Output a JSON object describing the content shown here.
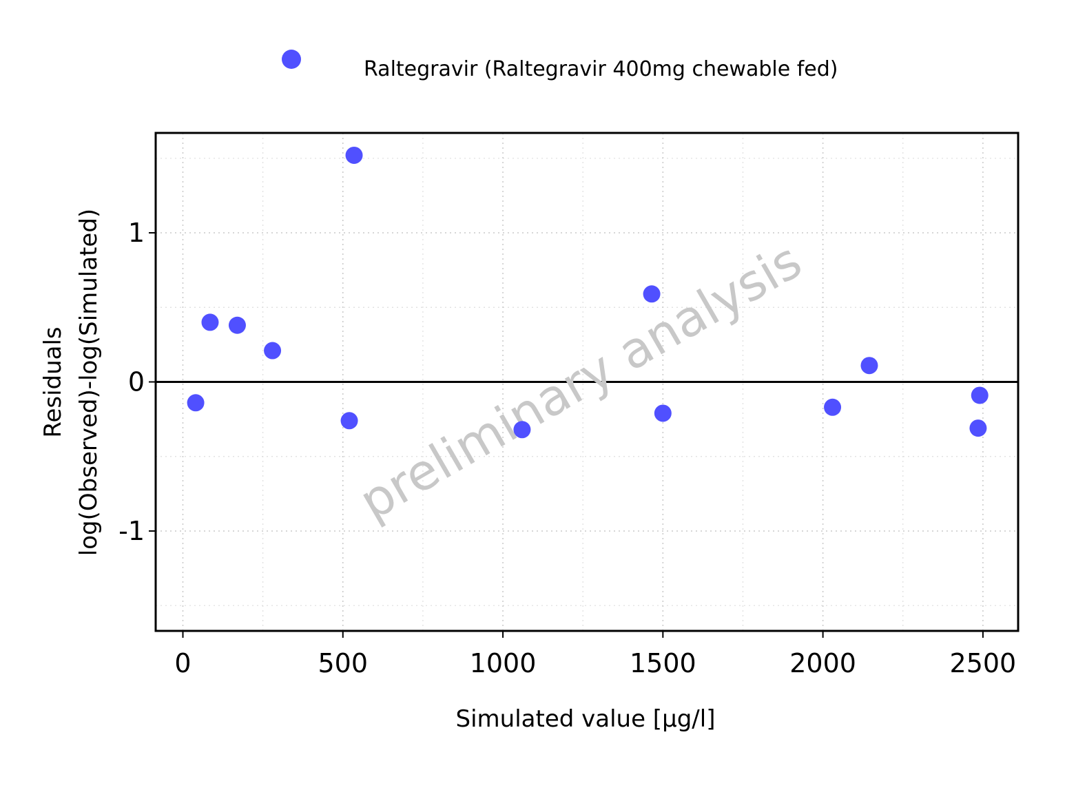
{
  "chart_data": {
    "type": "scatter",
    "xlabel": "Simulated value [µg/l]",
    "ylabel_line1": "Residuals",
    "ylabel_line2": "log(Observed)-log(Simulated)",
    "watermark": "preliminary analysis",
    "xlim": [
      -85,
      2610
    ],
    "ylim": [
      -1.67,
      1.67
    ],
    "x_ticks": [
      0,
      500,
      1000,
      1500,
      2000,
      2500
    ],
    "x_tick_labels": [
      "0",
      "500",
      "1000",
      "1500",
      "2000",
      "2500"
    ],
    "x_minor_ticks": [
      250,
      750,
      1250,
      1750,
      2250
    ],
    "y_ticks": [
      1,
      0,
      -1
    ],
    "y_tick_labels": [
      "1",
      "0",
      "-1"
    ],
    "y_minor_ticks": [
      1.5,
      0.5,
      -0.5,
      -1.5
    ],
    "reference_line_y": 0,
    "legend_position": "top",
    "series": [
      {
        "name": "Raltegravir (Raltegravir 400mg chewable fed)",
        "color": "#5050ff",
        "x": [
          40,
          85,
          170,
          280,
          520,
          535,
          1060,
          1465,
          1500,
          2030,
          2145,
          2485,
          2490
        ],
        "y": [
          -0.14,
          0.4,
          0.38,
          0.21,
          -0.26,
          1.52,
          -0.32,
          0.59,
          -0.21,
          -0.17,
          0.11,
          -0.31,
          -0.09
        ]
      }
    ]
  }
}
